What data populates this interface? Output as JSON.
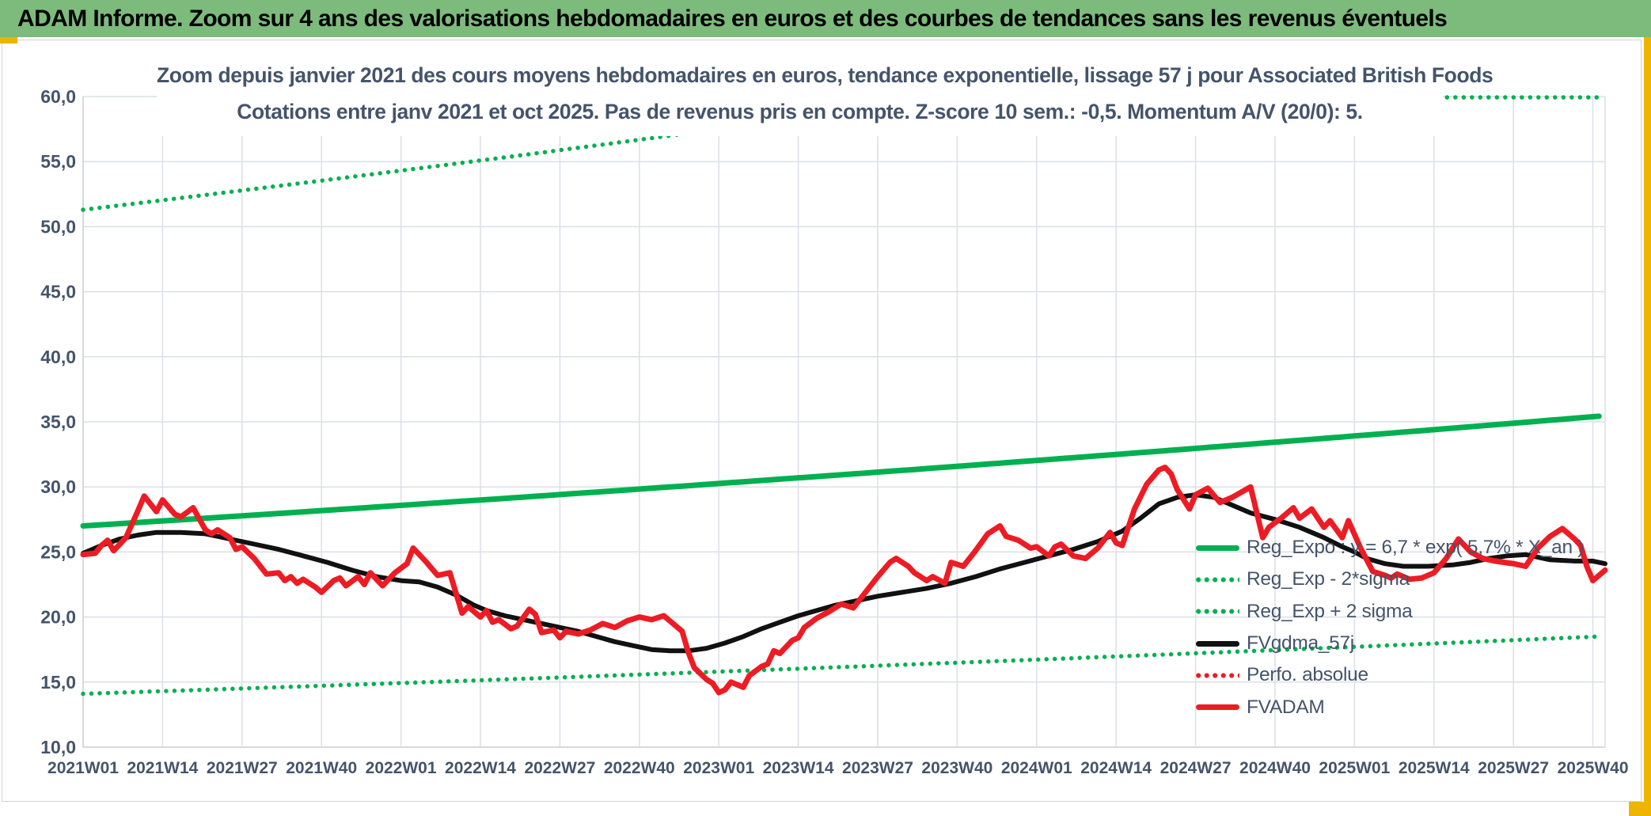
{
  "header": {
    "title": "ADAM Informe. Zoom sur 4 ans des valorisations hebdomadaires en euros et des courbes de tendances sans les revenus éventuels"
  },
  "chart_data": {
    "type": "line",
    "title": "Zoom depuis janvier 2021 des cours moyens hebdomadaires en euros, tendance exponentielle, lissage 57 j pour Associated British Foods",
    "subtitle": "Cotations entre janv 2021 et oct 2025. Pas de revenus pris en compte. Z-score 10 sem.: -0,5. Momentum A/V (20/0): 5.",
    "grid": true,
    "legend_position": "inside-right",
    "colors": {
      "green": "#00B050",
      "red": "#ED1C24",
      "black": "#111111",
      "grid": "#DCDFE8",
      "axis": "#C8CDD6",
      "text": "#44546A",
      "header_green": "#7CBB7C",
      "accent_yellow": "#EFB400"
    },
    "x_axis": {
      "unit": "ISO week",
      "weeks_per_tick": 13,
      "total_weeks": 249,
      "tick_labels": [
        "2021W01",
        "2021W14",
        "2021W27",
        "2021W40",
        "2022W01",
        "2022W14",
        "2022W27",
        "2022W40",
        "2023W01",
        "2023W14",
        "2023W27",
        "2023W40",
        "2024W01",
        "2024W14",
        "2024W27",
        "2024W40",
        "2025W01",
        "2025W14",
        "2025W27",
        "2025W40"
      ]
    },
    "y_axis": {
      "min": 10,
      "max": 60,
      "step": 5,
      "tick_labels": [
        "10,0",
        "15,0",
        "20,0",
        "25,0",
        "30,0",
        "35,0",
        "40,0",
        "45,0",
        "50,0",
        "55,0",
        "60,0"
      ]
    },
    "series": [
      {
        "name": "Reg_Expo : y = 6,7 * exp( 5,7% * X_an )",
        "type": "exponential",
        "style": "solid",
        "color": "#00B050",
        "stroke_width": 7,
        "start_value": 27.0,
        "annual_growth_pct": 5.7
      },
      {
        "name": "Reg_Exp - 2*sigma",
        "type": "exponential",
        "style": "dotted",
        "color": "#00B050",
        "stroke_width": 5.5,
        "start_value": 14.1,
        "annual_growth_pct": 5.7
      },
      {
        "name": "Reg_Exp + 2 sigma",
        "type": "exponential",
        "style": "dotted",
        "color": "#00B050",
        "stroke_width": 5.5,
        "start_value": 51.3,
        "annual_growth_pct": 5.7,
        "clipped_at_y_max": true
      },
      {
        "name": "FVgdma_57j",
        "type": "keypoints",
        "style": "solid",
        "color": "#111111",
        "stroke_width": 6,
        "points": [
          [
            0,
            24.9
          ],
          [
            3,
            25.5
          ],
          [
            6,
            26.0
          ],
          [
            9,
            26.3
          ],
          [
            12,
            26.5
          ],
          [
            16,
            26.5
          ],
          [
            20,
            26.4
          ],
          [
            24,
            26.0
          ],
          [
            28,
            25.6
          ],
          [
            32,
            25.2
          ],
          [
            36,
            24.7
          ],
          [
            40,
            24.2
          ],
          [
            44,
            23.6
          ],
          [
            48,
            23.1
          ],
          [
            52,
            22.8
          ],
          [
            55,
            22.7
          ],
          [
            58,
            22.3
          ],
          [
            61,
            21.7
          ],
          [
            64,
            20.9
          ],
          [
            66,
            20.5
          ],
          [
            69,
            20.1
          ],
          [
            72,
            19.8
          ],
          [
            75,
            19.5
          ],
          [
            78,
            19.2
          ],
          [
            81,
            18.9
          ],
          [
            84,
            18.5
          ],
          [
            87,
            18.1
          ],
          [
            90,
            17.8
          ],
          [
            93,
            17.5
          ],
          [
            96,
            17.4
          ],
          [
            99,
            17.4
          ],
          [
            102,
            17.6
          ],
          [
            105,
            18.0
          ],
          [
            108,
            18.5
          ],
          [
            111,
            19.1
          ],
          [
            114,
            19.6
          ],
          [
            117,
            20.1
          ],
          [
            120,
            20.5
          ],
          [
            123,
            20.9
          ],
          [
            126,
            21.2
          ],
          [
            130,
            21.6
          ],
          [
            134,
            21.9
          ],
          [
            138,
            22.2
          ],
          [
            142,
            22.6
          ],
          [
            146,
            23.1
          ],
          [
            150,
            23.7
          ],
          [
            154,
            24.2
          ],
          [
            158,
            24.7
          ],
          [
            162,
            25.2
          ],
          [
            166,
            25.8
          ],
          [
            170,
            26.6
          ],
          [
            173,
            27.6
          ],
          [
            176,
            28.7
          ],
          [
            179,
            29.2
          ],
          [
            182,
            29.4
          ],
          [
            185,
            29.2
          ],
          [
            188,
            28.6
          ],
          [
            191,
            28.0
          ],
          [
            195,
            27.5
          ],
          [
            199,
            26.9
          ],
          [
            203,
            26.1
          ],
          [
            206,
            25.4
          ],
          [
            208,
            25.0
          ],
          [
            210,
            24.5
          ],
          [
            213,
            24.1
          ],
          [
            216,
            23.9
          ],
          [
            220,
            23.9
          ],
          [
            224,
            24.0
          ],
          [
            227,
            24.2
          ],
          [
            230,
            24.5
          ],
          [
            233,
            24.7
          ],
          [
            236,
            24.8
          ],
          [
            240,
            24.4
          ],
          [
            244,
            24.3
          ],
          [
            247,
            24.3
          ],
          [
            249,
            24.1
          ]
        ]
      },
      {
        "name": "Perfo. absolue",
        "type": "keypoints",
        "style": "dotted",
        "color": "#ED1C24",
        "stroke_width": 5.5,
        "points": [],
        "note": "coincides with FVADAM curve (not separately visible)"
      },
      {
        "name": "FVADAM",
        "type": "keypoints",
        "style": "solid",
        "color": "#ED1C24",
        "stroke_width": 7,
        "points": [
          [
            0,
            24.8
          ],
          [
            2,
            24.9
          ],
          [
            3,
            25.5
          ],
          [
            4,
            25.9
          ],
          [
            5,
            25.1
          ],
          [
            7,
            26.1
          ],
          [
            9,
            28.2
          ],
          [
            10,
            29.3
          ],
          [
            12,
            28.1
          ],
          [
            13,
            29.0
          ],
          [
            15,
            27.9
          ],
          [
            16,
            27.7
          ],
          [
            18,
            28.4
          ],
          [
            20,
            26.7
          ],
          [
            21,
            26.4
          ],
          [
            22,
            26.7
          ],
          [
            24,
            26.1
          ],
          [
            25,
            25.2
          ],
          [
            26,
            25.4
          ],
          [
            28,
            24.5
          ],
          [
            30,
            23.3
          ],
          [
            32,
            23.4
          ],
          [
            33,
            22.8
          ],
          [
            34,
            23.1
          ],
          [
            35,
            22.6
          ],
          [
            36,
            22.9
          ],
          [
            38,
            22.3
          ],
          [
            39,
            21.9
          ],
          [
            41,
            22.8
          ],
          [
            42,
            23.0
          ],
          [
            43,
            22.4
          ],
          [
            45,
            23.1
          ],
          [
            46,
            22.5
          ],
          [
            47,
            23.4
          ],
          [
            49,
            22.4
          ],
          [
            51,
            23.4
          ],
          [
            53,
            24.1
          ],
          [
            54,
            25.3
          ],
          [
            56,
            24.3
          ],
          [
            58,
            23.2
          ],
          [
            60,
            23.4
          ],
          [
            62,
            20.3
          ],
          [
            63,
            20.8
          ],
          [
            65,
            20.0
          ],
          [
            66,
            20.5
          ],
          [
            67,
            19.6
          ],
          [
            68,
            19.8
          ],
          [
            70,
            19.1
          ],
          [
            71,
            19.3
          ],
          [
            73,
            20.6
          ],
          [
            74,
            20.2
          ],
          [
            75,
            18.8
          ],
          [
            77,
            19.0
          ],
          [
            78,
            18.4
          ],
          [
            79,
            18.9
          ],
          [
            81,
            18.7
          ],
          [
            83,
            19.0
          ],
          [
            85,
            19.5
          ],
          [
            87,
            19.2
          ],
          [
            89,
            19.7
          ],
          [
            91,
            20.0
          ],
          [
            93,
            19.8
          ],
          [
            95,
            20.1
          ],
          [
            97,
            19.3
          ],
          [
            98,
            18.9
          ],
          [
            99,
            17.3
          ],
          [
            100,
            16.1
          ],
          [
            102,
            15.2
          ],
          [
            103,
            14.9
          ],
          [
            104,
            14.2
          ],
          [
            105,
            14.4
          ],
          [
            106,
            15.0
          ],
          [
            108,
            14.6
          ],
          [
            109,
            15.5
          ],
          [
            111,
            16.2
          ],
          [
            112,
            16.4
          ],
          [
            113,
            17.4
          ],
          [
            114,
            17.2
          ],
          [
            116,
            18.2
          ],
          [
            117,
            18.4
          ],
          [
            118,
            19.2
          ],
          [
            120,
            19.9
          ],
          [
            122,
            20.4
          ],
          [
            124,
            21.0
          ],
          [
            126,
            20.7
          ],
          [
            128,
            21.9
          ],
          [
            130,
            23.1
          ],
          [
            132,
            24.2
          ],
          [
            133,
            24.5
          ],
          [
            135,
            23.9
          ],
          [
            136,
            23.4
          ],
          [
            138,
            22.8
          ],
          [
            139,
            23.1
          ],
          [
            141,
            22.6
          ],
          [
            142,
            24.2
          ],
          [
            144,
            23.9
          ],
          [
            146,
            25.1
          ],
          [
            148,
            26.4
          ],
          [
            150,
            27.0
          ],
          [
            151,
            26.2
          ],
          [
            153,
            25.9
          ],
          [
            155,
            25.3
          ],
          [
            156,
            25.4
          ],
          [
            158,
            24.7
          ],
          [
            159,
            25.4
          ],
          [
            160,
            25.6
          ],
          [
            162,
            24.7
          ],
          [
            164,
            24.5
          ],
          [
            166,
            25.3
          ],
          [
            168,
            26.5
          ],
          [
            169,
            25.7
          ],
          [
            170,
            25.5
          ],
          [
            172,
            28.3
          ],
          [
            174,
            30.2
          ],
          [
            176,
            31.3
          ],
          [
            177,
            31.5
          ],
          [
            178,
            31.0
          ],
          [
            179,
            29.8
          ],
          [
            181,
            28.3
          ],
          [
            182,
            29.4
          ],
          [
            184,
            29.9
          ],
          [
            186,
            28.8
          ],
          [
            188,
            29.2
          ],
          [
            191,
            30.0
          ],
          [
            193,
            26.1
          ],
          [
            194,
            26.9
          ],
          [
            196,
            27.6
          ],
          [
            198,
            28.4
          ],
          [
            199,
            27.6
          ],
          [
            201,
            28.3
          ],
          [
            203,
            26.9
          ],
          [
            204,
            27.4
          ],
          [
            206,
            26.1
          ],
          [
            207,
            27.4
          ],
          [
            209,
            25.3
          ],
          [
            211,
            23.5
          ],
          [
            213,
            23.2
          ],
          [
            214,
            23.0
          ],
          [
            215,
            23.3
          ],
          [
            217,
            22.9
          ],
          [
            219,
            23.0
          ],
          [
            221,
            23.4
          ],
          [
            223,
            24.5
          ],
          [
            225,
            26.0
          ],
          [
            227,
            25.0
          ],
          [
            229,
            24.5
          ],
          [
            231,
            24.3
          ],
          [
            234,
            24.1
          ],
          [
            236,
            23.9
          ],
          [
            238,
            25.3
          ],
          [
            240,
            26.2
          ],
          [
            242,
            26.8
          ],
          [
            244,
            26.0
          ],
          [
            245,
            25.5
          ],
          [
            246,
            23.9
          ],
          [
            247,
            22.8
          ],
          [
            249,
            23.6
          ]
        ]
      }
    ],
    "legend": [
      {
        "label": "Reg_Expo : y = 6,7 * exp( 5,7% * X_an )",
        "color": "#00B050",
        "style": "solid"
      },
      {
        "label": "Reg_Exp - 2*sigma",
        "color": "#00B050",
        "style": "dotted"
      },
      {
        "label": "Reg_Exp + 2 sigma",
        "color": "#00B050",
        "style": "dotted"
      },
      {
        "label": "FVgdma_57j",
        "color": "#111111",
        "style": "solid"
      },
      {
        "label": "Perfo. absolue",
        "color": "#ED1C24",
        "style": "dotted"
      },
      {
        "label": "FVADAM",
        "color": "#ED1C24",
        "style": "solid"
      }
    ]
  }
}
